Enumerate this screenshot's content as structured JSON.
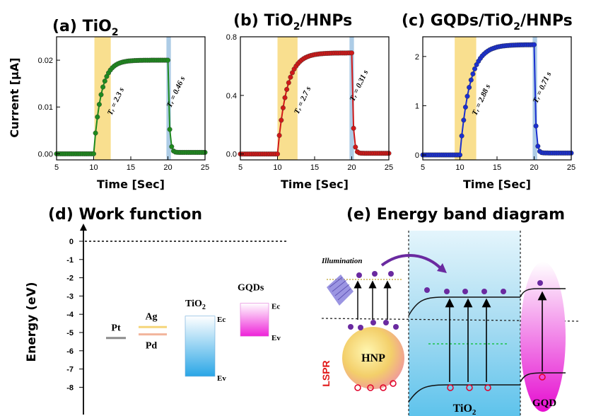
{
  "panels": {
    "a_title": "(a) TiO",
    "a_sub": "2",
    "b_title": "(b) TiO",
    "b_sub": "2",
    "b_tail": "/HNPs",
    "c_title": "(c) GQDs/TiO",
    "c_sub": "2",
    "c_tail": "/HNPs",
    "d_title": "(d) Work function",
    "e_title": "(e) Energy band diagram"
  },
  "axis": {
    "ylabel_top": "Current [μA]",
    "xlabel": "Time [Sec]",
    "energy_label": "Energy (eV)"
  },
  "chart_data": [
    {
      "type": "line",
      "title": "(a) TiO2",
      "xlabel": "Time [Sec]",
      "ylabel": "Current [μA]",
      "xlim": [
        5,
        25
      ],
      "ylim": [
        -0.0013,
        0.025
      ],
      "xticks": [
        "5",
        "10",
        "15",
        "20",
        "25"
      ],
      "yticks": [
        "0.00",
        "0.01",
        "0.02"
      ],
      "ytick_values": [
        0,
        0.01,
        0.02
      ],
      "color": "#1e8a1e",
      "base": 0.0,
      "top": 0.02,
      "off_final": 0.0003,
      "rise_band": [
        10.1,
        12.3
      ],
      "fall_band": [
        19.8,
        20.4
      ],
      "annotations": [
        "Tᵣ = 2.3 s",
        "Tᵣ = 0.46 s"
      ],
      "annotation_ypos": [
        0.011,
        0.013
      ]
    },
    {
      "type": "line",
      "title": "(b) TiO2/HNPs",
      "xlabel": "Time [Sec]",
      "ylabel": "",
      "xlim": [
        5,
        25
      ],
      "ylim": [
        -0.04,
        0.8
      ],
      "xticks": [
        "5",
        "10",
        "15",
        "20",
        "25"
      ],
      "yticks": [
        "0.0",
        "0.4",
        "0.8"
      ],
      "ytick_values": [
        0,
        0.4,
        0.8
      ],
      "color": "#d01818",
      "base": 0.0,
      "top": 0.69,
      "off_final": 0.005,
      "rise_band": [
        10.0,
        12.7
      ],
      "fall_band": [
        19.7,
        20.3
      ],
      "annotations": [
        "Tᵣ = 2.7 s",
        "Tᵣ = 0.31 s"
      ],
      "annotation_ypos": [
        0.36,
        0.46
      ]
    },
    {
      "type": "line",
      "title": "(c) GQDs/TiO2/HNPs",
      "xlabel": "Time [Sec]",
      "ylabel": "",
      "xlim": [
        5,
        25
      ],
      "ylim": [
        -0.1,
        2.4
      ],
      "xticks": [
        "5",
        "10",
        "15",
        "20",
        "25"
      ],
      "yticks": [
        "0",
        "1",
        "2"
      ],
      "ytick_values": [
        0,
        1,
        2
      ],
      "color": "#1a2fd0",
      "base": 0.0,
      "top": 2.24,
      "off_final": 0.04,
      "rise_band": [
        9.3,
        12.2
      ],
      "fall_band": [
        19.8,
        20.4
      ],
      "annotations": [
        "Tᵣ = 2.88 s",
        "Tᵣ = 0.71 s"
      ],
      "annotation_ypos": [
        1.1,
        1.35
      ]
    }
  ],
  "work_function": {
    "ylabel": "Energy (eV)",
    "yticks": [
      "0",
      "-1",
      "-2",
      "-3",
      "-4",
      "-5",
      "-6",
      "-7",
      "-8"
    ],
    "metals": [
      {
        "name": "Pt",
        "value": -5.3,
        "color": "#8c8c8c"
      },
      {
        "name": "Ag",
        "value": -4.7,
        "color": "#f5d57a"
      },
      {
        "name": "Pd",
        "value": -5.1,
        "color": "#f2b59c"
      }
    ],
    "tio2": {
      "name": "TiO",
      "sub": "2",
      "ec_label": "Ec",
      "ev_label": "Ev",
      "ec": -4.1,
      "ev": -7.4
    },
    "gqds": {
      "name": "GQDs",
      "ec_label": "Ec",
      "ev_label": "Ev",
      "ec": -3.4,
      "ev": -5.2
    }
  },
  "band_diagram": {
    "illumination": "Illumination",
    "hnp": "HNP",
    "lspr": "LSPR",
    "tio2": "TiO",
    "tio2_sub": "2",
    "gqd": "GQD"
  }
}
